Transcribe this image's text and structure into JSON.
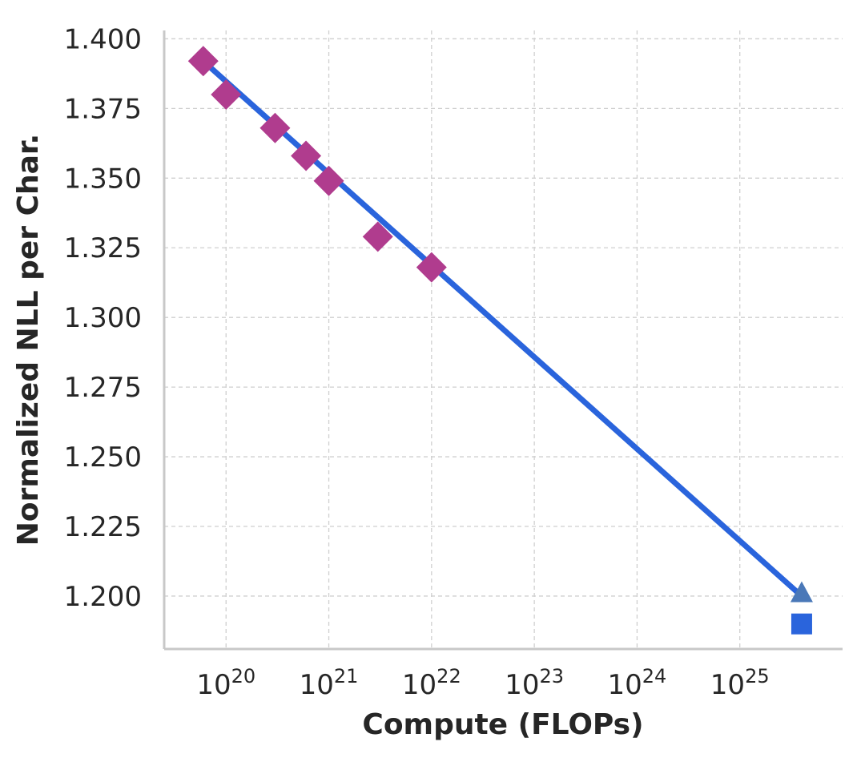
{
  "chart_data": {
    "type": "scatter",
    "title": "",
    "xlabel": "Compute (FLOPs)",
    "ylabel": "Normalized NLL per Char.",
    "x_scale": "log",
    "xlim": [
      2.5e+19,
      1e+26
    ],
    "ylim": [
      1.181,
      1.403
    ],
    "x_tick_base": "10",
    "x_ticks": [
      {
        "value": 1e+20,
        "exp": "20"
      },
      {
        "value": 1e+21,
        "exp": "21"
      },
      {
        "value": 1e+22,
        "exp": "22"
      },
      {
        "value": 1e+23,
        "exp": "23"
      },
      {
        "value": 1e+24,
        "exp": "24"
      },
      {
        "value": 1e+25,
        "exp": "25"
      }
    ],
    "y_ticks": [
      {
        "value": 1.4,
        "label": "1.400"
      },
      {
        "value": 1.375,
        "label": "1.375"
      },
      {
        "value": 1.35,
        "label": "1.350"
      },
      {
        "value": 1.325,
        "label": "1.325"
      },
      {
        "value": 1.3,
        "label": "1.300"
      },
      {
        "value": 1.275,
        "label": "1.275"
      },
      {
        "value": 1.25,
        "label": "1.250"
      },
      {
        "value": 1.225,
        "label": "1.225"
      },
      {
        "value": 1.2,
        "label": "1.200"
      }
    ],
    "grid": true,
    "series": [
      {
        "kind": "line",
        "color": "#2a64dc",
        "x": [
          6e+19,
          4e+25
        ],
        "y": [
          1.392,
          1.2
        ]
      },
      {
        "kind": "scatter",
        "marker": "diamond",
        "color": "#b03c8e",
        "x": [
          6e+19,
          1e+20,
          3e+20,
          6e+20,
          1e+21,
          3e+21,
          1e+22
        ],
        "y": [
          1.392,
          1.38,
          1.368,
          1.358,
          1.349,
          1.329,
          1.318
        ]
      },
      {
        "kind": "scatter",
        "marker": "triangle",
        "color": "#4a78b8",
        "x": [
          4e+25
        ],
        "y": [
          1.201
        ]
      },
      {
        "kind": "scatter",
        "marker": "square",
        "color": "#2a64dc",
        "x": [
          4e+25
        ],
        "y": [
          1.19
        ]
      }
    ]
  }
}
